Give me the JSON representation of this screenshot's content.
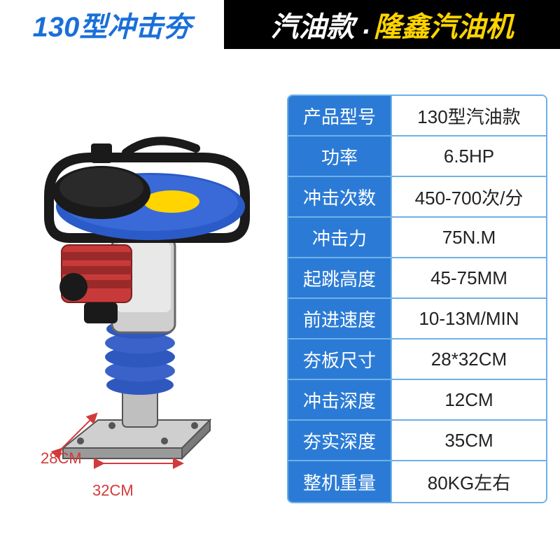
{
  "colors": {
    "header_left_bg": "#ffffff",
    "header_left_text": "#1a6fd8",
    "header_right_bg": "#000000",
    "header_right_text_1": "#ffffff",
    "header_right_text_2": "#ffd400",
    "table_border": "#6fb0e8",
    "table_label_bg": "#2b7bd6",
    "table_label_text": "#ffffff",
    "table_value_text": "#222222",
    "dim_text": "#d23a3a",
    "machine_blue": "#3a62c8",
    "machine_red": "#c83a3a",
    "machine_grey": "#9a9a9a",
    "machine_dark": "#3a3a3a",
    "machine_black": "#1a1a1a",
    "machine_light": "#e8e8e8"
  },
  "header": {
    "left": "130型冲击夯",
    "right_part1": "汽油款",
    "right_dot": ".",
    "right_part2": "隆鑫汽油机"
  },
  "dimensions": {
    "width_label": "28CM",
    "depth_label": "32CM"
  },
  "specs": [
    {
      "label": "产品型号",
      "value": "130型汽油款"
    },
    {
      "label": "功率",
      "value": "6.5HP"
    },
    {
      "label": "冲击次数",
      "value": "450-700次/分"
    },
    {
      "label": "冲击力",
      "value": "75N.M"
    },
    {
      "label": "起跳高度",
      "value": "45-75MM"
    },
    {
      "label": "前进速度",
      "value": "10-13M/MIN"
    },
    {
      "label": "夯板尺寸",
      "value": "28*32CM"
    },
    {
      "label": "冲击深度",
      "value": "12CM"
    },
    {
      "label": "夯实深度",
      "value": "35CM"
    },
    {
      "label": "整机重量",
      "value": "80KG左右"
    }
  ]
}
